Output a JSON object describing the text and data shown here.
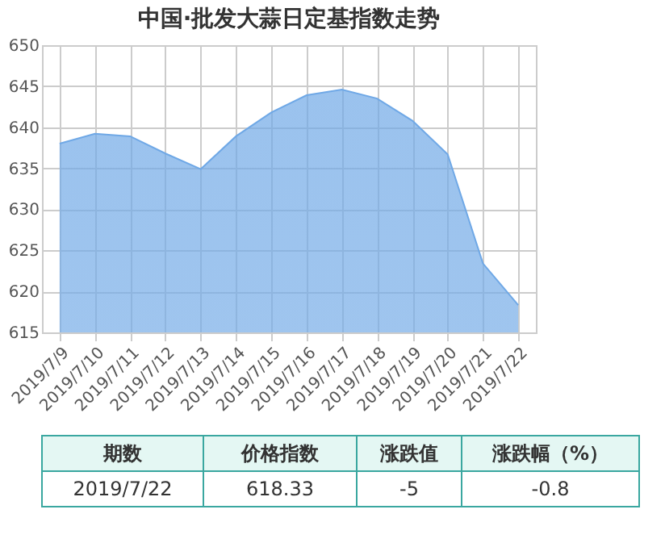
{
  "chart_data": {
    "type": "area",
    "title": "中国·批发大蒜日定基指数走势",
    "categories": [
      "2019/7/9",
      "2019/7/10",
      "2019/7/11",
      "2019/7/12",
      "2019/7/13",
      "2019/7/14",
      "2019/7/15",
      "2019/7/16",
      "2019/7/17",
      "2019/7/18",
      "2019/7/19",
      "2019/7/20",
      "2019/7/21",
      "2019/7/22"
    ],
    "series": [
      {
        "color": "#6fa8e6",
        "values": [
          638.0,
          639.2,
          638.9,
          636.8,
          634.9,
          638.9,
          641.8,
          643.9,
          644.6,
          643.5,
          640.8,
          636.7,
          623.4,
          618.33
        ]
      }
    ],
    "ylim": [
      615,
      650
    ],
    "yticks": [
      615,
      620,
      625,
      630,
      635,
      640,
      645,
      650
    ],
    "grid": true,
    "annotations": [
      "期数",
      "价格指数",
      "涨跌值",
      "涨跌幅（%）",
      "2019/7/22",
      "618.33",
      "-5",
      "-0.8"
    ]
  }
}
